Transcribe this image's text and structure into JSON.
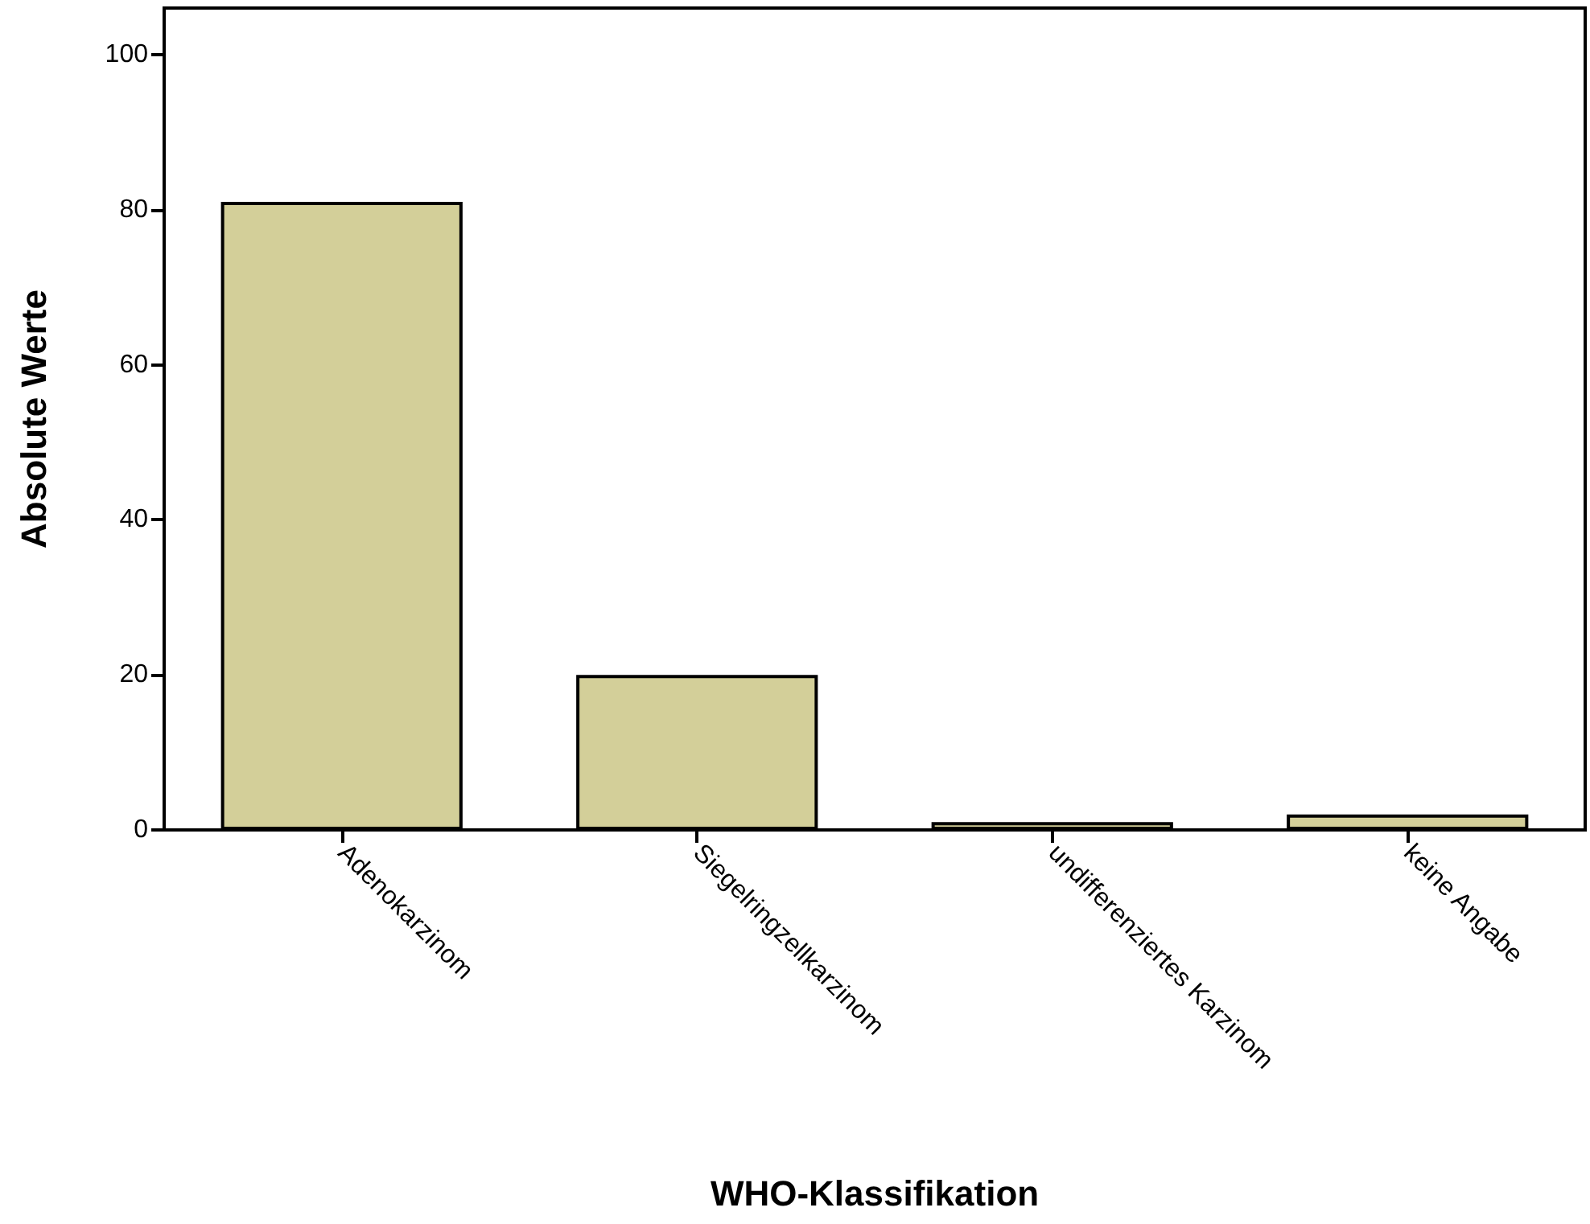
{
  "chart_data": {
    "type": "bar",
    "xlabel": "WHO-Klassifikation",
    "ylabel": "Absolute Werte",
    "categories": [
      "Adenokarzinom",
      "Siegelringzellkarzinom",
      "undifferenziertes Karzinom",
      "keine Angabe"
    ],
    "values": [
      81,
      20,
      1,
      2
    ],
    "color": "#d3cf99",
    "ylim": [
      0,
      106
    ],
    "yticks": [
      0,
      20,
      40,
      60,
      80,
      100
    ],
    "grid": false
  }
}
